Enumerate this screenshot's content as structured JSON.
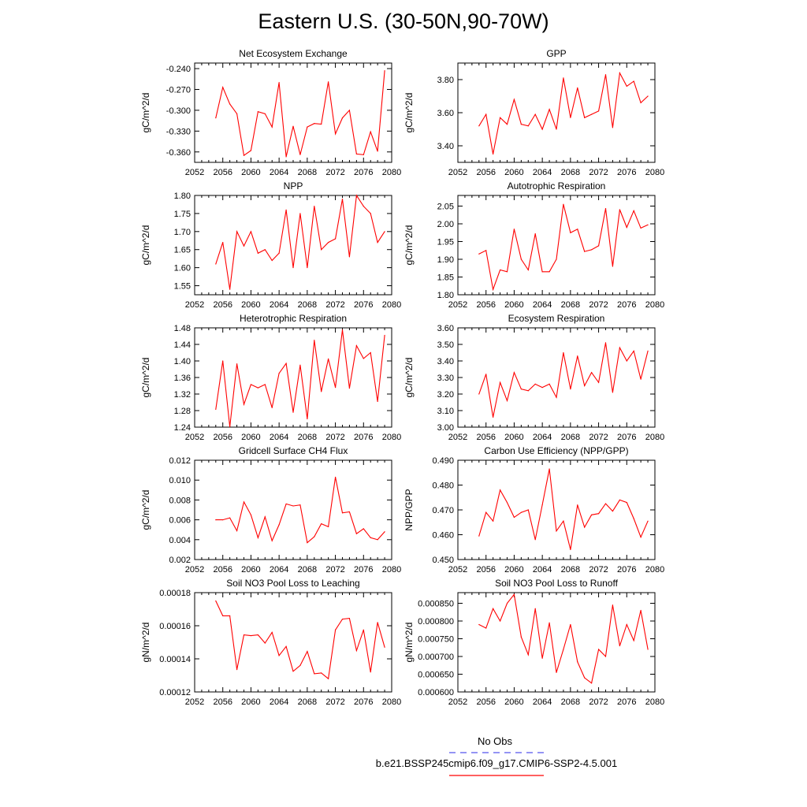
{
  "page": {
    "title": "Eastern U.S. (30-50N,90-70W)"
  },
  "legend": {
    "obs_label": "No Obs",
    "obs_color": "#5555ee",
    "model_label": "b.e21.BSSP245cmip6.f09_g17.CMIP6-SSP2-4.5.001",
    "model_color": "#ff0000"
  },
  "chart_data": [
    {
      "type": "line",
      "title": "Net Ecosystem Exchange",
      "ylabel": "gC/m^2/d",
      "xlim": [
        2052,
        2080
      ],
      "xticks": [
        2052,
        2056,
        2060,
        2064,
        2068,
        2072,
        2076,
        2080
      ],
      "ylim": [
        -0.375,
        -0.232
      ],
      "yticks": [
        -0.24,
        -0.27,
        -0.3,
        -0.33,
        -0.36
      ],
      "yticklabels": [
        "-0.240",
        "-0.270",
        "-0.300",
        "-0.330",
        "-0.360"
      ],
      "series": [
        {
          "color": "#ff0000",
          "x": [
            2055,
            2056,
            2057,
            2058,
            2059,
            2060,
            2061,
            2062,
            2063,
            2064,
            2065,
            2066,
            2067,
            2068,
            2069,
            2070,
            2071,
            2072,
            2073,
            2074,
            2075,
            2076,
            2077,
            2078,
            2079
          ],
          "values": [
            -0.311,
            -0.267,
            -0.291,
            -0.305,
            -0.365,
            -0.358,
            -0.302,
            -0.305,
            -0.324,
            -0.26,
            -0.367,
            -0.323,
            -0.364,
            -0.324,
            -0.319,
            -0.32,
            -0.259,
            -0.334,
            -0.311,
            -0.3,
            -0.363,
            -0.364,
            -0.331,
            -0.359,
            -0.243
          ]
        }
      ]
    },
    {
      "type": "line",
      "title": "GPP",
      "ylabel": "gC/m^2/d",
      "xlim": [
        2052,
        2080
      ],
      "xticks": [
        2052,
        2056,
        2060,
        2064,
        2068,
        2072,
        2076,
        2080
      ],
      "ylim": [
        3.3,
        3.9
      ],
      "yticks": [
        3.8,
        3.6,
        3.4
      ],
      "yticklabels": [
        "3.80",
        "3.60",
        "3.40"
      ],
      "series": [
        {
          "color": "#ff0000",
          "x": [
            2055,
            2056,
            2057,
            2058,
            2059,
            2060,
            2061,
            2062,
            2063,
            2064,
            2065,
            2066,
            2067,
            2068,
            2069,
            2070,
            2071,
            2072,
            2073,
            2074,
            2075,
            2076,
            2077,
            2078,
            2079
          ],
          "values": [
            3.52,
            3.59,
            3.35,
            3.57,
            3.53,
            3.68,
            3.53,
            3.52,
            3.59,
            3.5,
            3.62,
            3.5,
            3.81,
            3.57,
            3.75,
            3.57,
            3.59,
            3.61,
            3.83,
            3.51,
            3.84,
            3.76,
            3.79,
            3.66,
            3.7
          ]
        }
      ]
    },
    {
      "type": "line",
      "title": "NPP",
      "ylabel": "gC/m^2/d",
      "xlim": [
        2052,
        2080
      ],
      "xticks": [
        2052,
        2056,
        2060,
        2064,
        2068,
        2072,
        2076,
        2080
      ],
      "ylim": [
        1.525,
        1.8
      ],
      "yticks": [
        1.8,
        1.75,
        1.7,
        1.65,
        1.6,
        1.55
      ],
      "yticklabels": [
        "1.80",
        "1.75",
        "1.70",
        "1.65",
        "1.60",
        "1.55"
      ],
      "series": [
        {
          "color": "#ff0000",
          "x": [
            2055,
            2056,
            2057,
            2058,
            2059,
            2060,
            2061,
            2062,
            2063,
            2064,
            2065,
            2066,
            2067,
            2068,
            2069,
            2070,
            2071,
            2072,
            2073,
            2074,
            2075,
            2076,
            2077,
            2078,
            2079
          ],
          "values": [
            1.61,
            1.67,
            1.54,
            1.7,
            1.66,
            1.7,
            1.64,
            1.65,
            1.62,
            1.64,
            1.76,
            1.6,
            1.75,
            1.6,
            1.77,
            1.65,
            1.67,
            1.68,
            1.79,
            1.63,
            1.8,
            1.77,
            1.75,
            1.67,
            1.7
          ]
        }
      ]
    },
    {
      "type": "line",
      "title": "Autotrophic Respiration",
      "ylabel": "gC/m^2/d",
      "xlim": [
        2052,
        2080
      ],
      "xticks": [
        2052,
        2056,
        2060,
        2064,
        2068,
        2072,
        2076,
        2080
      ],
      "ylim": [
        1.8,
        2.08
      ],
      "yticks": [
        2.05,
        2.0,
        1.95,
        1.9,
        1.85,
        1.8
      ],
      "yticklabels": [
        "2.05",
        "2.00",
        "1.95",
        "1.90",
        "1.85",
        "1.80"
      ],
      "series": [
        {
          "color": "#ff0000",
          "x": [
            2055,
            2056,
            2057,
            2058,
            2059,
            2060,
            2061,
            2062,
            2063,
            2064,
            2065,
            2066,
            2067,
            2068,
            2069,
            2070,
            2071,
            2072,
            2073,
            2074,
            2075,
            2076,
            2077,
            2078,
            2079
          ],
          "values": [
            1.915,
            1.925,
            1.815,
            1.87,
            1.865,
            1.985,
            1.9,
            1.87,
            1.972,
            1.865,
            1.865,
            1.9,
            2.055,
            1.975,
            1.985,
            1.922,
            1.927,
            1.938,
            2.043,
            1.88,
            2.04,
            1.99,
            2.037,
            1.988,
            1.997
          ]
        }
      ]
    },
    {
      "type": "line",
      "title": "Heterotrophic Respiration",
      "ylabel": "gC/m^2/d",
      "xlim": [
        2052,
        2080
      ],
      "xticks": [
        2052,
        2056,
        2060,
        2064,
        2068,
        2072,
        2076,
        2080
      ],
      "ylim": [
        1.24,
        1.48
      ],
      "yticks": [
        1.48,
        1.44,
        1.4,
        1.36,
        1.32,
        1.28,
        1.24
      ],
      "yticklabels": [
        "1.48",
        "1.44",
        "1.40",
        "1.36",
        "1.32",
        "1.28",
        "1.24"
      ],
      "series": [
        {
          "color": "#ff0000",
          "x": [
            2055,
            2056,
            2057,
            2058,
            2059,
            2060,
            2061,
            2062,
            2063,
            2064,
            2065,
            2066,
            2067,
            2068,
            2069,
            2070,
            2071,
            2072,
            2073,
            2074,
            2075,
            2076,
            2077,
            2078,
            2079
          ],
          "values": [
            1.283,
            1.4,
            1.241,
            1.393,
            1.295,
            1.343,
            1.335,
            1.343,
            1.287,
            1.37,
            1.394,
            1.276,
            1.39,
            1.26,
            1.45,
            1.326,
            1.405,
            1.336,
            1.475,
            1.334,
            1.437,
            1.406,
            1.42,
            1.302,
            1.462
          ]
        }
      ]
    },
    {
      "type": "line",
      "title": "Ecosystem Respiration",
      "ylabel": "gC/m^2/d",
      "xlim": [
        2052,
        2080
      ],
      "xticks": [
        2052,
        2056,
        2060,
        2064,
        2068,
        2072,
        2076,
        2080
      ],
      "ylim": [
        3.0,
        3.6
      ],
      "yticks": [
        3.6,
        3.5,
        3.4,
        3.3,
        3.2,
        3.1,
        3.0
      ],
      "yticklabels": [
        "3.60",
        "3.50",
        "3.40",
        "3.30",
        "3.20",
        "3.10",
        "3.00"
      ],
      "series": [
        {
          "color": "#ff0000",
          "x": [
            2055,
            2056,
            2057,
            2058,
            2059,
            2060,
            2061,
            2062,
            2063,
            2064,
            2065,
            2066,
            2067,
            2068,
            2069,
            2070,
            2071,
            2072,
            2073,
            2074,
            2075,
            2076,
            2077,
            2078,
            2079
          ],
          "values": [
            3.2,
            3.32,
            3.06,
            3.27,
            3.16,
            3.33,
            3.23,
            3.22,
            3.26,
            3.24,
            3.26,
            3.18,
            3.45,
            3.23,
            3.43,
            3.25,
            3.33,
            3.27,
            3.51,
            3.21,
            3.48,
            3.4,
            3.46,
            3.29,
            3.46
          ]
        }
      ]
    },
    {
      "type": "line",
      "title": "Gridcell Surface CH4 Flux",
      "ylabel": "gC/m^2/d",
      "xlim": [
        2052,
        2080
      ],
      "xticks": [
        2052,
        2056,
        2060,
        2064,
        2068,
        2072,
        2076,
        2080
      ],
      "ylim": [
        0.002,
        0.012
      ],
      "yticks": [
        0.012,
        0.01,
        0.008,
        0.006,
        0.004,
        0.002
      ],
      "yticklabels": [
        "0.012",
        "0.010",
        "0.008",
        "0.006",
        "0.004",
        "0.002"
      ],
      "series": [
        {
          "color": "#ff0000",
          "x": [
            2055,
            2056,
            2057,
            2058,
            2059,
            2060,
            2061,
            2062,
            2063,
            2064,
            2065,
            2066,
            2067,
            2068,
            2069,
            2070,
            2071,
            2072,
            2073,
            2074,
            2075,
            2076,
            2077,
            2078,
            2079
          ],
          "values": [
            0.006,
            0.006,
            0.0062,
            0.0049,
            0.0078,
            0.0065,
            0.0042,
            0.0063,
            0.0039,
            0.0055,
            0.0076,
            0.0074,
            0.0075,
            0.0037,
            0.0043,
            0.0056,
            0.0053,
            0.0103,
            0.0067,
            0.0068,
            0.0046,
            0.0051,
            0.0042,
            0.004,
            0.0048
          ]
        }
      ]
    },
    {
      "type": "line",
      "title": "Carbon Use Efficiency (NPP/GPP)",
      "ylabel": "NPP/GPP",
      "xlim": [
        2052,
        2080
      ],
      "xticks": [
        2052,
        2056,
        2060,
        2064,
        2068,
        2072,
        2076,
        2080
      ],
      "ylim": [
        0.45,
        0.49
      ],
      "yticks": [
        0.49,
        0.48,
        0.47,
        0.46,
        0.45
      ],
      "yticklabels": [
        "0.490",
        "0.480",
        "0.470",
        "0.460",
        "0.450"
      ],
      "series": [
        {
          "color": "#ff0000",
          "x": [
            2055,
            2056,
            2057,
            2058,
            2059,
            2060,
            2061,
            2062,
            2063,
            2064,
            2065,
            2066,
            2067,
            2068,
            2069,
            2070,
            2071,
            2072,
            2073,
            2074,
            2075,
            2076,
            2077,
            2078,
            2079
          ],
          "values": [
            0.4595,
            0.469,
            0.4655,
            0.478,
            0.473,
            0.467,
            0.469,
            0.47,
            0.458,
            0.472,
            0.4865,
            0.4615,
            0.4655,
            0.454,
            0.472,
            0.463,
            0.468,
            0.4685,
            0.4725,
            0.4695,
            0.474,
            0.473,
            0.4665,
            0.459,
            0.4655
          ]
        }
      ]
    },
    {
      "type": "line",
      "title": "Soil NO3 Pool Loss to Leaching",
      "ylabel": "gN/m^2/d",
      "xlim": [
        2052,
        2080
      ],
      "xticks": [
        2052,
        2056,
        2060,
        2064,
        2068,
        2072,
        2076,
        2080
      ],
      "ylim": [
        0.00012,
        0.00018
      ],
      "yticks": [
        0.00018,
        0.00016,
        0.00014,
        0.00012
      ],
      "yticklabels": [
        "0.00018",
        "0.00016",
        "0.00014",
        "0.00012"
      ],
      "series": [
        {
          "color": "#ff0000",
          "x": [
            2055,
            2056,
            2057,
            2058,
            2059,
            2060,
            2061,
            2062,
            2063,
            2064,
            2065,
            2066,
            2067,
            2068,
            2069,
            2070,
            2071,
            2072,
            2073,
            2074,
            2075,
            2076,
            2077,
            2078,
            2079
          ],
          "values": [
            0.000175,
            0.000166,
            0.000166,
            0.0001335,
            0.0001545,
            0.000154,
            0.0001545,
            0.0001495,
            0.000156,
            0.000142,
            0.0001475,
            0.0001325,
            0.000136,
            0.0001445,
            0.000131,
            0.0001315,
            0.000128,
            0.0001575,
            0.000164,
            0.0001645,
            0.000145,
            0.0001575,
            0.000132,
            0.000162,
            0.000147
          ]
        }
      ]
    },
    {
      "type": "line",
      "title": "Soil NO3 Pool Loss to Runoff",
      "ylabel": "gN/m^2/d",
      "xlim": [
        2052,
        2080
      ],
      "xticks": [
        2052,
        2056,
        2060,
        2064,
        2068,
        2072,
        2076,
        2080
      ],
      "ylim": [
        0.0006,
        0.00088
      ],
      "yticks": [
        0.00085,
        0.0008,
        0.00075,
        0.0007,
        0.00065,
        0.0006
      ],
      "yticklabels": [
        "0.000850",
        "0.000800",
        "0.000750",
        "0.000700",
        "0.000650",
        "0.000600"
      ],
      "series": [
        {
          "color": "#ff0000",
          "x": [
            2055,
            2056,
            2057,
            2058,
            2059,
            2060,
            2061,
            2062,
            2063,
            2064,
            2065,
            2066,
            2067,
            2068,
            2069,
            2070,
            2071,
            2072,
            2073,
            2074,
            2075,
            2076,
            2077,
            2078,
            2079
          ],
          "values": [
            0.00079,
            0.00078,
            0.000835,
            0.0008,
            0.00085,
            0.000875,
            0.000755,
            0.000705,
            0.000835,
            0.000695,
            0.000795,
            0.000655,
            0.00072,
            0.00079,
            0.000685,
            0.00064,
            0.000625,
            0.00072,
            0.0007,
            0.000845,
            0.00073,
            0.00079,
            0.000745,
            0.00083,
            0.00072
          ]
        }
      ]
    }
  ]
}
